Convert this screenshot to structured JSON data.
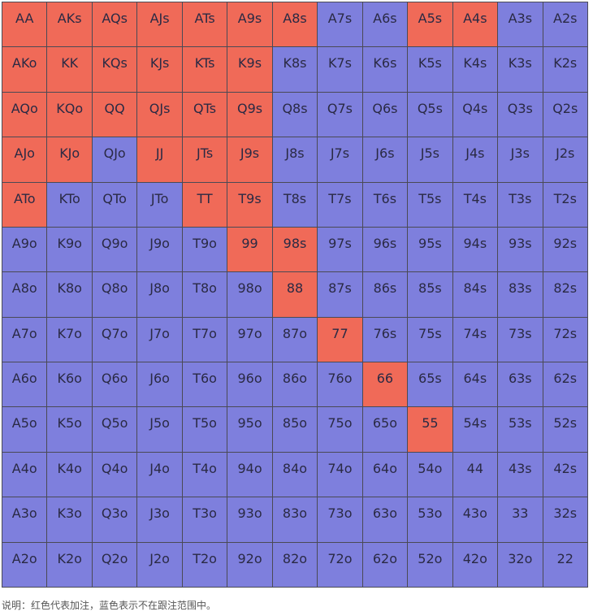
{
  "grid": {
    "rows": [
      [
        "AA",
        "AKs",
        "AQs",
        "AJs",
        "ATs",
        "A9s",
        "A8s",
        "A7s",
        "A6s",
        "A5s",
        "A4s",
        "A3s",
        "A2s"
      ],
      [
        "AKo",
        "KK",
        "KQs",
        "KJs",
        "KTs",
        "K9s",
        "K8s",
        "K7s",
        "K6s",
        "K5s",
        "K4s",
        "K3s",
        "K2s"
      ],
      [
        "AQo",
        "KQo",
        "QQ",
        "QJs",
        "QTs",
        "Q9s",
        "Q8s",
        "Q7s",
        "Q6s",
        "Q5s",
        "Q4s",
        "Q3s",
        "Q2s"
      ],
      [
        "AJo",
        "KJo",
        "QJo",
        "JJ",
        "JTs",
        "J9s",
        "J8s",
        "J7s",
        "J6s",
        "J5s",
        "J4s",
        "J3s",
        "J2s"
      ],
      [
        "ATo",
        "KTo",
        "QTo",
        "JTo",
        "TT",
        "T9s",
        "T8s",
        "T7s",
        "T6s",
        "T5s",
        "T4s",
        "T3s",
        "T2s"
      ],
      [
        "A9o",
        "K9o",
        "Q9o",
        "J9o",
        "T9o",
        "99",
        "98s",
        "97s",
        "96s",
        "95s",
        "94s",
        "93s",
        "92s"
      ],
      [
        "A8o",
        "K8o",
        "Q8o",
        "J8o",
        "T8o",
        "98o",
        "88",
        "87s",
        "86s",
        "85s",
        "84s",
        "83s",
        "82s"
      ],
      [
        "A7o",
        "K7o",
        "Q7o",
        "J7o",
        "T7o",
        "97o",
        "87o",
        "77",
        "76s",
        "75s",
        "74s",
        "73s",
        "72s"
      ],
      [
        "A6o",
        "K6o",
        "Q6o",
        "J6o",
        "T6o",
        "96o",
        "86o",
        "76o",
        "66",
        "65s",
        "64s",
        "63s",
        "62s"
      ],
      [
        "A5o",
        "K5o",
        "Q5o",
        "J5o",
        "T5o",
        "95o",
        "85o",
        "75o",
        "65o",
        "55",
        "54s",
        "53s",
        "52s"
      ],
      [
        "A4o",
        "K4o",
        "Q4o",
        "J4o",
        "T4o",
        "94o",
        "84o",
        "74o",
        "64o",
        "54o",
        "44",
        "43s",
        "42s"
      ],
      [
        "A3o",
        "K3o",
        "Q3o",
        "J3o",
        "T3o",
        "93o",
        "83o",
        "73o",
        "63o",
        "53o",
        "43o",
        "33",
        "32s"
      ],
      [
        "A2o",
        "K2o",
        "Q2o",
        "J2o",
        "T2o",
        "92o",
        "82o",
        "72o",
        "62o",
        "52o",
        "42o",
        "32o",
        "22"
      ]
    ],
    "red_hands": [
      "AA",
      "AKs",
      "AQs",
      "AJs",
      "ATs",
      "A9s",
      "A8s",
      "A5s",
      "A4s",
      "AKo",
      "KK",
      "KQs",
      "KJs",
      "KTs",
      "K9s",
      "AQo",
      "KQo",
      "QQ",
      "QJs",
      "QTs",
      "Q9s",
      "AJo",
      "KJo",
      "JJ",
      "JTs",
      "J9s",
      "ATo",
      "TT",
      "T9s",
      "99",
      "98s",
      "88",
      "77",
      "66",
      "55"
    ],
    "colors": {
      "red": "#f06a58",
      "blue": "#7e7fdd"
    }
  },
  "legend": {
    "text": "说明：红色代表加注，蓝色表示不在跟注范围中。"
  }
}
